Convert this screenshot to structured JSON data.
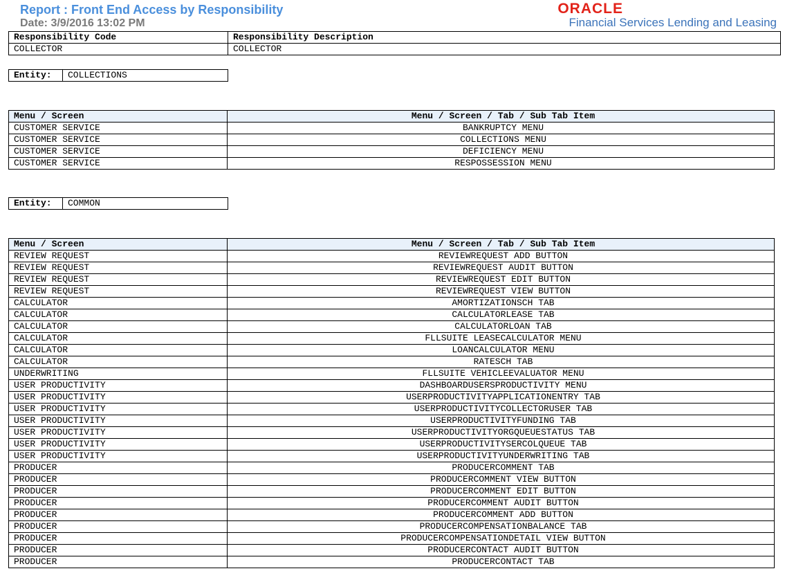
{
  "header": {
    "title": "Report : Front End Access by Responsibility",
    "date": "Date: 3/9/2016  13:02 PM",
    "logo_brand": "ORACLE",
    "logo_subtitle": "Financial Services Lending and Leasing"
  },
  "responsibility": {
    "columns": [
      "Responsibility Code",
      "Responsibility Description"
    ],
    "code": "COLLECTOR",
    "description": "COLLECTOR"
  },
  "entities": [
    {
      "label": "Entity:",
      "name": "COLLECTIONS",
      "columns": [
        "Menu / Screen",
        "Menu / Screen / Tab / Sub Tab Item"
      ],
      "rows": [
        [
          "CUSTOMER SERVICE",
          "BANKRUPTCY MENU"
        ],
        [
          "CUSTOMER SERVICE",
          "COLLECTIONS MENU"
        ],
        [
          "CUSTOMER SERVICE",
          "DEFICIENCY MENU"
        ],
        [
          "CUSTOMER SERVICE",
          "RESPOSSESSION MENU"
        ]
      ]
    },
    {
      "label": "Entity:",
      "name": "COMMON",
      "columns": [
        "Menu / Screen",
        "Menu / Screen / Tab / Sub Tab Item"
      ],
      "rows": [
        [
          "REVIEW REQUEST",
          "REVIEWREQUEST ADD BUTTON"
        ],
        [
          "REVIEW REQUEST",
          "REVIEWREQUEST AUDIT BUTTON"
        ],
        [
          "REVIEW REQUEST",
          "REVIEWREQUEST EDIT BUTTON"
        ],
        [
          "REVIEW REQUEST",
          "REVIEWREQUEST VIEW BUTTON"
        ],
        [
          "CALCULATOR",
          "AMORTIZATIONSCH TAB"
        ],
        [
          "CALCULATOR",
          "CALCULATORLEASE TAB"
        ],
        [
          "CALCULATOR",
          "CALCULATORLOAN TAB"
        ],
        [
          "CALCULATOR",
          "FLLSUITE LEASECALCULATOR MENU"
        ],
        [
          "CALCULATOR",
          "LOANCALCULATOR MENU"
        ],
        [
          "CALCULATOR",
          "RATESCH TAB"
        ],
        [
          "UNDERWRITING",
          "FLLSUITE VEHICLEEVALUATOR MENU"
        ],
        [
          "USER PRODUCTIVITY",
          "DASHBOARDUSERSPRODUCTIVITY MENU"
        ],
        [
          "USER PRODUCTIVITY",
          "USERPRODUCTIVITYAPPLICATIONENTRY TAB"
        ],
        [
          "USER PRODUCTIVITY",
          "USERPRODUCTIVITYCOLLECTORUSER TAB"
        ],
        [
          "USER PRODUCTIVITY",
          "USERPRODUCTIVITYFUNDING TAB"
        ],
        [
          "USER PRODUCTIVITY",
          "USERPRODUCTIVITYORGQUEUESTATUS TAB"
        ],
        [
          "USER PRODUCTIVITY",
          "USERPRODUCTIVITYSERCOLQUEUE TAB"
        ],
        [
          "USER PRODUCTIVITY",
          "USERPRODUCTIVITYUNDERWRITING TAB"
        ],
        [
          "PRODUCER",
          "PRODUCERCOMMENT TAB"
        ],
        [
          "PRODUCER",
          "PRODUCERCOMMENT VIEW BUTTON"
        ],
        [
          "PRODUCER",
          "PRODUCERCOMMENT EDIT BUTTON"
        ],
        [
          "PRODUCER",
          "PRODUCERCOMMENT AUDIT BUTTON"
        ],
        [
          "PRODUCER",
          "PRODUCERCOMMENT ADD BUTTON"
        ],
        [
          "PRODUCER",
          "PRODUCERCOMPENSATIONBALANCE TAB"
        ],
        [
          "PRODUCER",
          "PRODUCERCOMPENSATIONDETAIL VIEW BUTTON"
        ],
        [
          "PRODUCER",
          "PRODUCERCONTACT AUDIT BUTTON"
        ],
        [
          "PRODUCER",
          "PRODUCERCONTACT TAB"
        ]
      ]
    }
  ]
}
